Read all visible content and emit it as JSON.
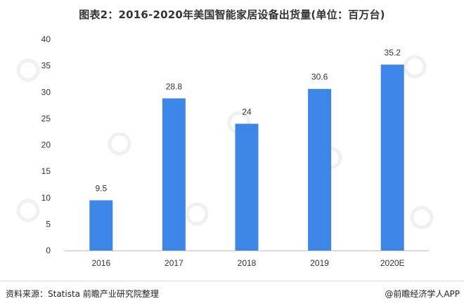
{
  "title": "图表2：2016-2020年美国智能家居设备出货量(单位：百万台)",
  "footer": {
    "source": "资料来源：Statista 前瞻产业研究院整理",
    "brand": "@前瞻经济学人APP"
  },
  "colors": {
    "bar": "#3d85e6",
    "axis": "#bfbfbf",
    "text": "#333333"
  },
  "chart_data": {
    "type": "bar",
    "title": "图表2：2016-2020年美国智能家居设备出货量(单位：百万台)",
    "categories": [
      "2016",
      "2017",
      "2018",
      "2019",
      "2020E"
    ],
    "values": [
      9.5,
      28.8,
      24,
      30.6,
      35.2
    ],
    "value_labels": [
      "9.5",
      "28.8",
      "24",
      "30.6",
      "35.2"
    ],
    "y_ticks": [
      "0",
      "5",
      "10",
      "15",
      "20",
      "25",
      "30",
      "35",
      "40"
    ],
    "ylim": [
      0,
      40
    ],
    "grid": false,
    "legend": "none",
    "xlabel": "",
    "ylabel": ""
  }
}
